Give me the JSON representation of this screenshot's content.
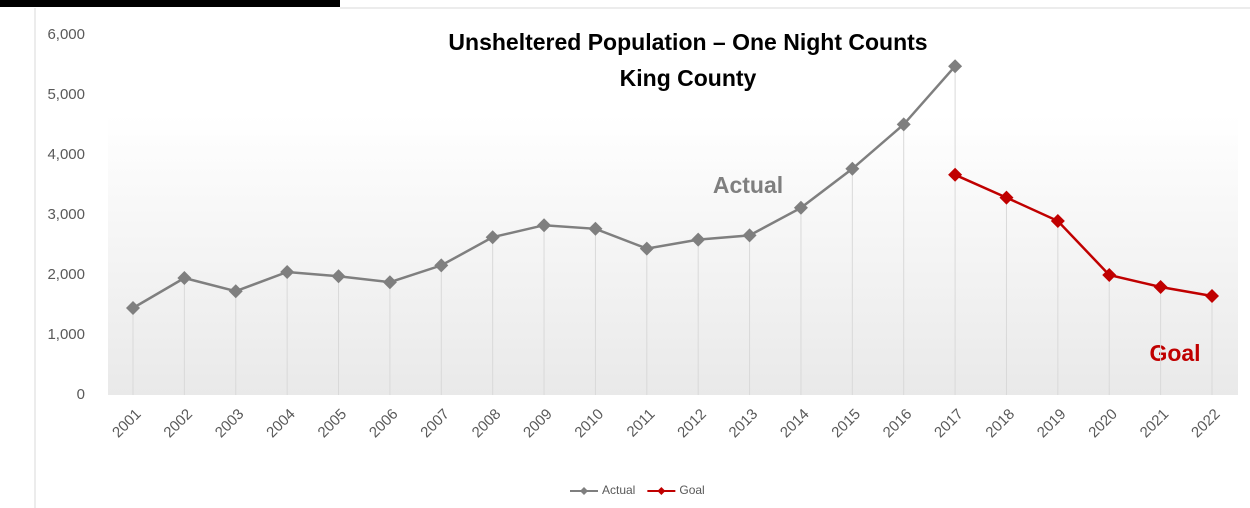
{
  "chart_data": {
    "type": "line",
    "title": "Unsheltered Population – One Night Counts",
    "subtitle": "King County",
    "categories": [
      "2001",
      "2002",
      "2003",
      "2004",
      "2005",
      "2006",
      "2007",
      "2008",
      "2009",
      "2010",
      "2011",
      "2012",
      "2013",
      "2014",
      "2015",
      "2016",
      "2017",
      "2018",
      "2019",
      "2020",
      "2021",
      "2022"
    ],
    "series": [
      {
        "name": "Actual",
        "color": "#7f7f7f",
        "values": [
          1450,
          1950,
          1730,
          2050,
          1980,
          1880,
          2160,
          2630,
          2830,
          2770,
          2440,
          2590,
          2660,
          3120,
          3770,
          4510,
          5480,
          null,
          null,
          null,
          null,
          null
        ]
      },
      {
        "name": "Goal",
        "color": "#c00000",
        "values": [
          null,
          null,
          null,
          null,
          null,
          null,
          null,
          null,
          null,
          null,
          null,
          null,
          null,
          null,
          null,
          null,
          3670,
          3290,
          2900,
          2000,
          1800,
          1650
        ]
      }
    ],
    "annotations": [
      "Actual",
      "Goal"
    ],
    "ylim": [
      0,
      6000
    ],
    "yticks": [
      {
        "value": 0,
        "label": "0"
      },
      {
        "value": 1000,
        "label": "1,000"
      },
      {
        "value": 2000,
        "label": "2,000"
      },
      {
        "value": 3000,
        "label": "3,000"
      },
      {
        "value": 4000,
        "label": "4,000"
      },
      {
        "value": 5000,
        "label": "5,000"
      },
      {
        "value": 6000,
        "label": "6,000"
      }
    ],
    "legend": "bottom"
  }
}
